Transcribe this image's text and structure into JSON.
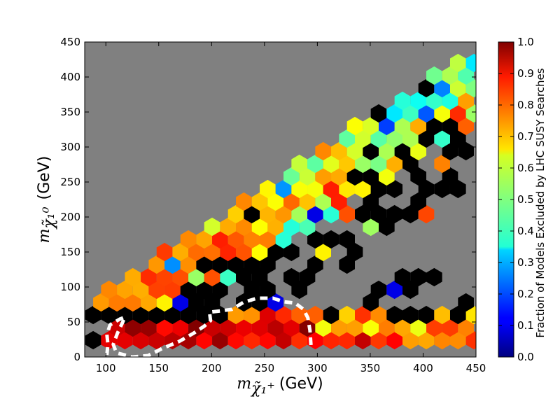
{
  "chart_data": {
    "type": "heatmap",
    "subtype": "hexbin",
    "xlabel": {
      "symbol": "m",
      "sub": "χ̃₁⁺",
      "unit": "(GeV)"
    },
    "ylabel": {
      "symbol": "m",
      "sub": "χ̃₁⁰",
      "unit": "(GeV)"
    },
    "xlim": [
      80,
      450
    ],
    "ylim": [
      0,
      450
    ],
    "xticks": [
      "100",
      "150",
      "200",
      "250",
      "300",
      "350",
      "400",
      "450"
    ],
    "yticks": [
      "0",
      "50",
      "100",
      "150",
      "200",
      "250",
      "300",
      "350",
      "400",
      "450"
    ],
    "background_color": "#808080",
    "colorbar": {
      "label": "Fraction of Models Excluded by LHC SUSY Searches",
      "range": [
        0,
        1
      ],
      "ticks": [
        "0.0",
        "0.1",
        "0.2",
        "0.3",
        "0.4",
        "0.5",
        "0.6",
        "0.7",
        "0.8",
        "0.9",
        "1.0"
      ],
      "colormap": "jet"
    },
    "hex_rows_y": [
      24,
      42,
      60,
      78,
      96,
      114,
      132,
      150,
      168,
      186,
      204,
      222,
      240,
      258,
      276,
      294,
      312,
      330,
      348,
      366,
      384,
      402,
      420
    ],
    "overlay_contour": {
      "style": "dashed",
      "color": "#ffffff",
      "points": [
        [
          101,
          3
        ],
        [
          102,
          18
        ],
        [
          101,
          32
        ],
        [
          104,
          46
        ],
        [
          113,
          54
        ],
        [
          118,
          57
        ],
        [
          116,
          50
        ],
        [
          111,
          34
        ],
        [
          107,
          18
        ],
        [
          110,
          6
        ],
        [
          125,
          0
        ],
        [
          140,
          2
        ],
        [
          153,
          12
        ],
        [
          169,
          22
        ],
        [
          183,
          34
        ],
        [
          193,
          44
        ],
        [
          199,
          52
        ],
        [
          198,
          64
        ],
        [
          209,
          66
        ],
        [
          219,
          68
        ],
        [
          230,
          78
        ],
        [
          243,
          84
        ],
        [
          258,
          84
        ],
        [
          268,
          79
        ],
        [
          279,
          77
        ],
        [
          287,
          68
        ],
        [
          291,
          56
        ],
        [
          293,
          38
        ],
        [
          294,
          16
        ]
      ]
    }
  }
}
